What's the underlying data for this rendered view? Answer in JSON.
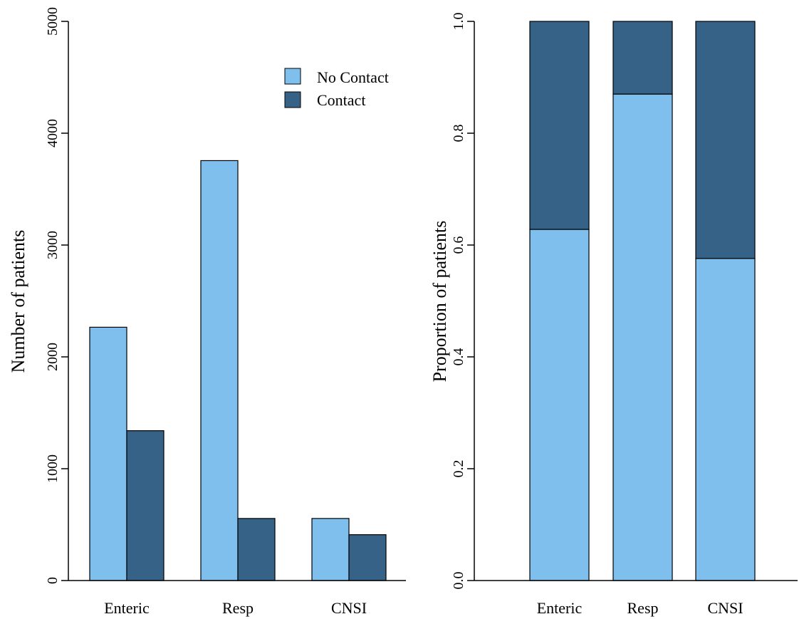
{
  "chart_data": [
    {
      "type": "bar",
      "layout": "grouped",
      "categories": [
        "Enteric",
        "Resp",
        "CNSI"
      ],
      "series": [
        {
          "name": "No Contact",
          "values": [
            2265,
            3755,
            555
          ]
        },
        {
          "name": "Contact",
          "values": [
            1340,
            555,
            410
          ]
        }
      ],
      "ylabel": "Number of patients",
      "xlabel": "",
      "ylim": [
        0,
        5000
      ],
      "yticks": [
        "0",
        "1000",
        "2000",
        "3000",
        "4000",
        "5000"
      ],
      "legend": "top-right",
      "grid": false
    },
    {
      "type": "bar",
      "layout": "stacked",
      "categories": [
        "Enteric",
        "Resp",
        "CNSI"
      ],
      "series": [
        {
          "name": "No Contact",
          "values": [
            0.628,
            0.87,
            0.576
          ]
        },
        {
          "name": "Contact",
          "values": [
            0.372,
            0.13,
            0.424
          ]
        }
      ],
      "ylabel": "Proportion of patients",
      "xlabel": "",
      "ylim": [
        0,
        1
      ],
      "yticks": [
        "0.0",
        "0.2",
        "0.4",
        "0.6",
        "0.8",
        "1.0"
      ],
      "grid": false
    }
  ],
  "colors": {
    "no_contact": "#7fbfed",
    "contact": "#376287",
    "stroke": "#000000"
  }
}
